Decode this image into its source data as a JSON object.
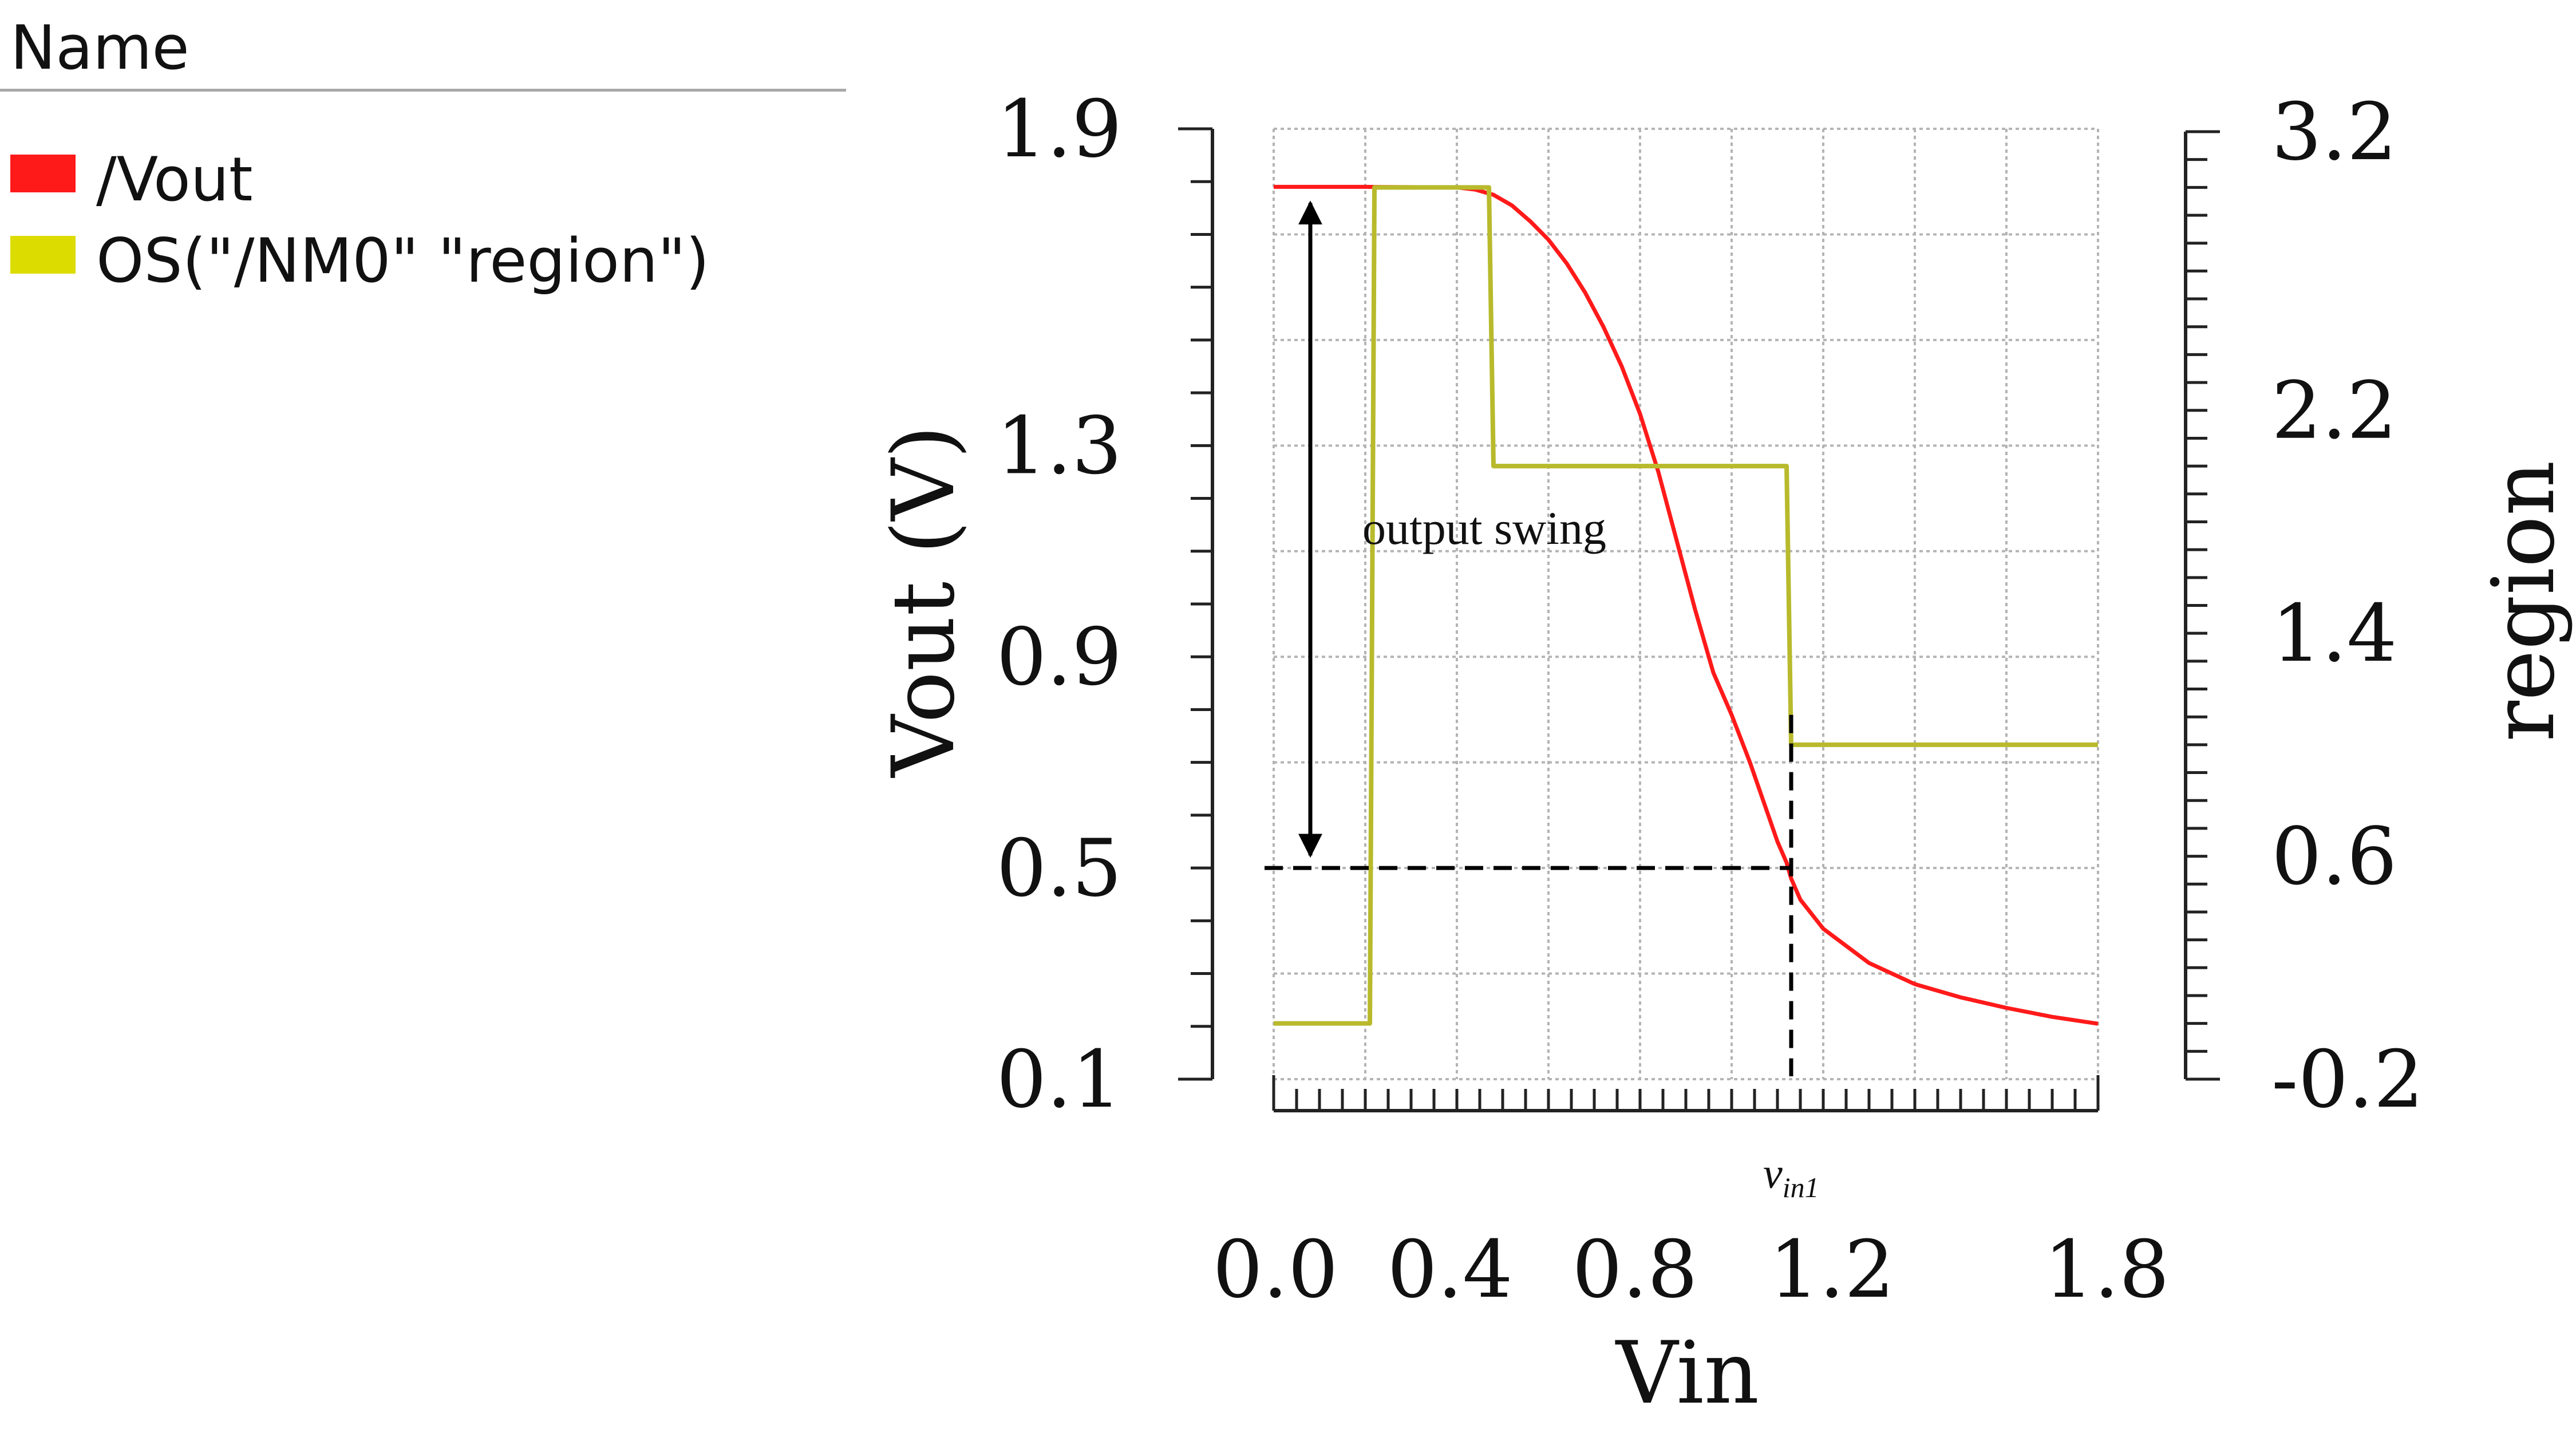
{
  "legend": {
    "header": "Name",
    "items": [
      {
        "label": "/Vout",
        "color": "#ff1a1a"
      },
      {
        "label": "OS(\"/NM0\" \"region\")",
        "color": "#dcdc00"
      }
    ]
  },
  "chart_data": {
    "type": "line",
    "xlabel": "Vin",
    "ylabel": "Vout (V)",
    "y2label": "region",
    "xlim": [
      0.0,
      1.8
    ],
    "ylim": [
      0.1,
      1.9
    ],
    "y2lim": [
      -0.2,
      3.2
    ],
    "xticks": [
      "0.0",
      "0.4",
      "0.8",
      "1.2",
      "1.8"
    ],
    "yticks": [
      "1.9",
      "1.3",
      "0.9",
      "0.5",
      "0.1"
    ],
    "y2ticks": [
      "3.2",
      "2.2",
      "1.4",
      "0.6",
      "-0.2"
    ],
    "grid": true,
    "series": [
      {
        "name": "/Vout",
        "axis": "left",
        "color": "#ff1a1a",
        "x": [
          0.0,
          0.2,
          0.4,
          0.44,
          0.48,
          0.52,
          0.56,
          0.6,
          0.64,
          0.68,
          0.72,
          0.76,
          0.8,
          0.84,
          0.88,
          0.92,
          0.96,
          1.0,
          1.04,
          1.08,
          1.1,
          1.12,
          1.13,
          1.15,
          1.2,
          1.3,
          1.4,
          1.5,
          1.6,
          1.7,
          1.8
        ],
        "y": [
          1.79,
          1.79,
          1.789,
          1.785,
          1.775,
          1.755,
          1.725,
          1.69,
          1.645,
          1.59,
          1.525,
          1.45,
          1.36,
          1.25,
          1.12,
          0.99,
          0.87,
          0.79,
          0.7,
          0.6,
          0.55,
          0.51,
          0.48,
          0.44,
          0.385,
          0.32,
          0.28,
          0.255,
          0.235,
          0.218,
          0.205
        ]
      },
      {
        "name": "OS(\"/NM0\" \"region\")",
        "axis": "right",
        "color": "#b8ba2c",
        "x": [
          0.0,
          0.21,
          0.22,
          0.47,
          0.48,
          1.12,
          1.13,
          1.8
        ],
        "y": [
          0.0,
          0.0,
          3.0,
          3.0,
          2.0,
          2.0,
          1.0,
          1.0
        ]
      }
    ],
    "annotations": {
      "output_swing_text": "output swing",
      "vin1_main": "v",
      "vin1_sub": "in1",
      "vin1_x": 1.13,
      "output_low": 0.5,
      "output_high": 1.79,
      "arrow_x": 0.08
    }
  }
}
